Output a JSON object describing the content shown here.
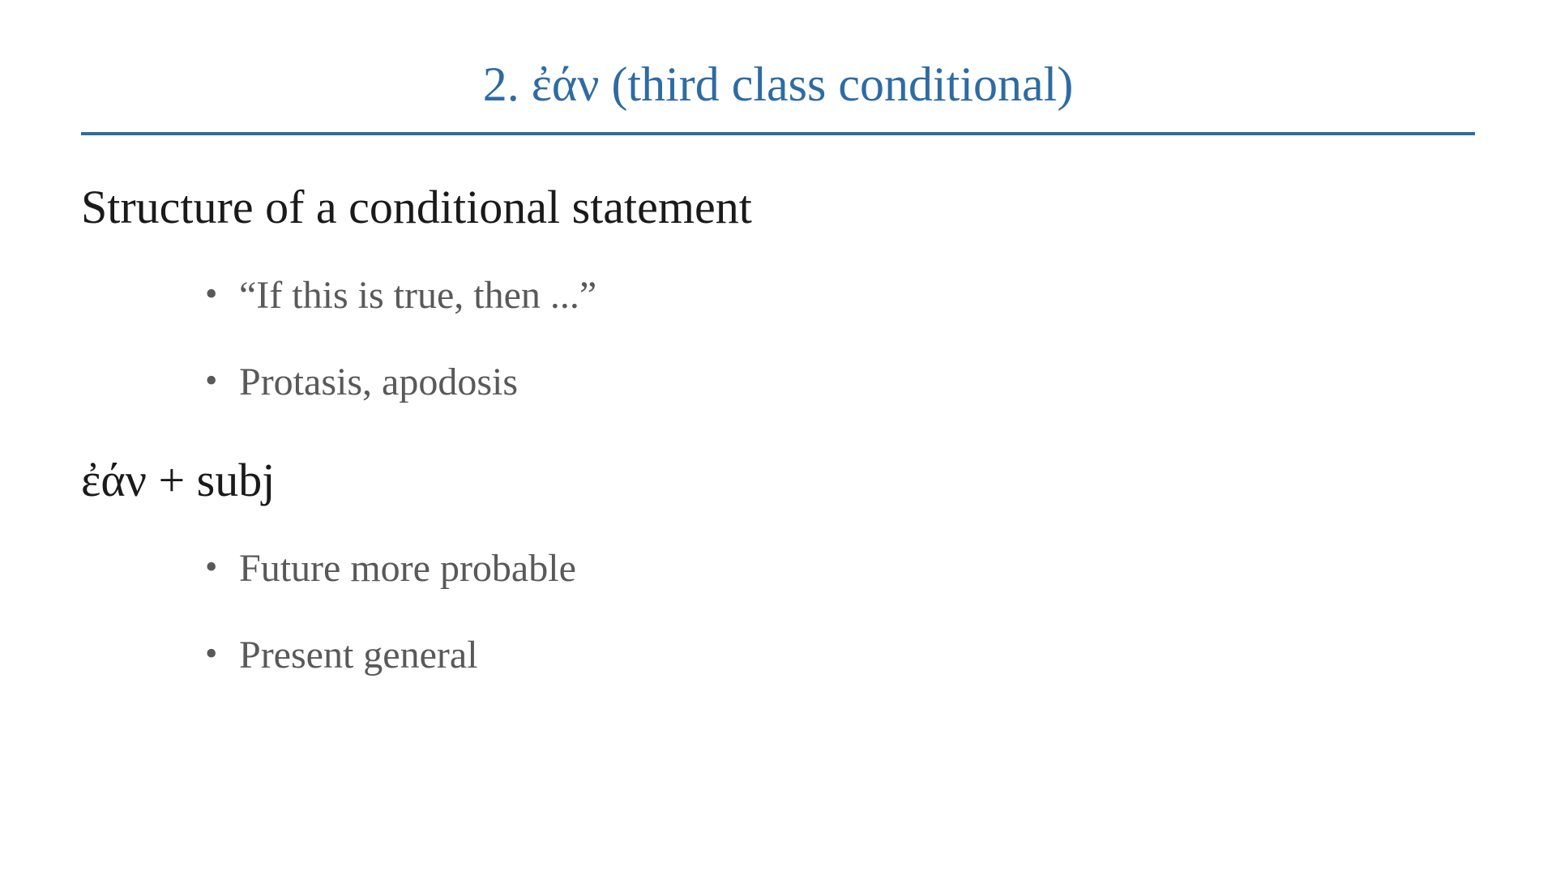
{
  "colors": {
    "title_color": "#2e6ba3",
    "divider_color": "#2e6ba3",
    "heading_color": "#1a1a1a",
    "bullet_color": "#595959",
    "background_color": "#ffffff"
  },
  "typography": {
    "font_family": "Times New Roman",
    "title_fontsize": 60,
    "heading_fontsize": 58,
    "bullet_fontsize": 48
  },
  "slide": {
    "title": "2. ἐάν (third class conditional)",
    "section1": {
      "heading": "Structure of a conditional statement",
      "bullets": [
        "“If this is true, then ...”",
        "Protasis, apodosis"
      ]
    },
    "section2": {
      "heading": "ἐάν + subj",
      "bullets": [
        "Future more probable",
        "Present general"
      ]
    }
  }
}
